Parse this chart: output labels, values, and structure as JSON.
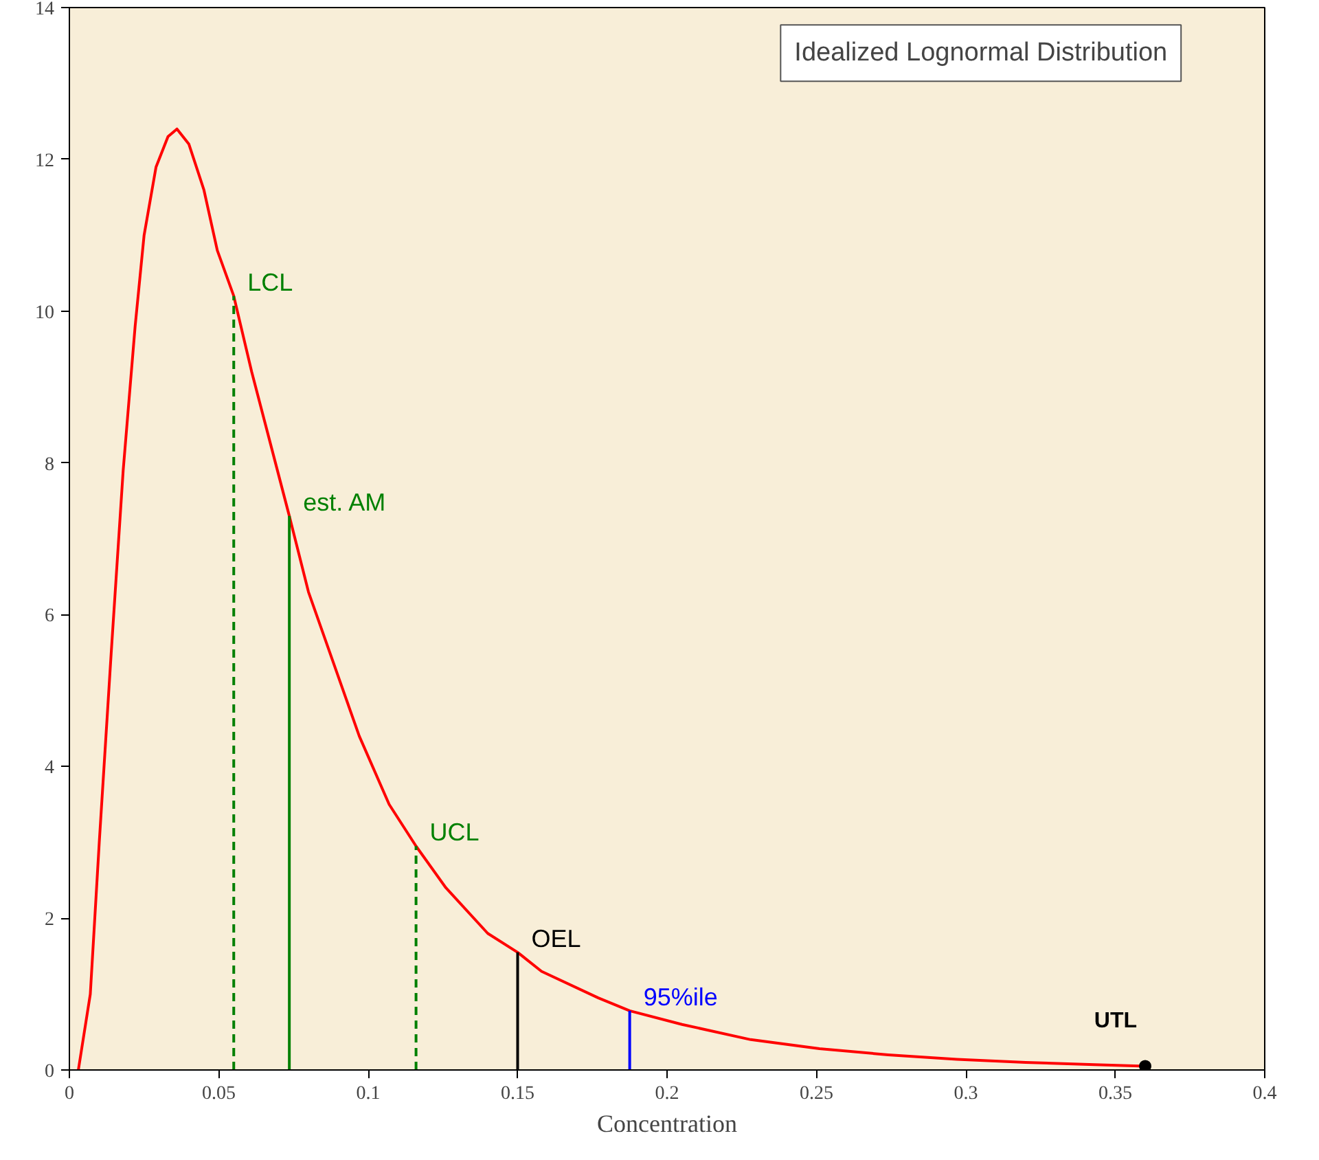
{
  "chart_data": {
    "type": "line",
    "title": "Idealized Lognormal Distribution",
    "xlabel": "Concentration",
    "xlim": [
      0,
      0.4
    ],
    "xticks": [
      0,
      0.05,
      0.1,
      0.15,
      0.2,
      0.25,
      0.3,
      0.35,
      0.4
    ],
    "ylim": [
      0,
      14
    ],
    "yticks": [
      0,
      2,
      4,
      6,
      8,
      10,
      12,
      14
    ],
    "grid": false,
    "marker": "none",
    "series": [
      {
        "color": "#ff0000",
        "line_style": "solid",
        "x": [
          0.003,
          0.007,
          0.01,
          0.014,
          0.018,
          0.022,
          0.025,
          0.029,
          0.033,
          0.036,
          0.04,
          0.045,
          0.0495,
          0.055,
          0.061,
          0.0736,
          0.08,
          0.097,
          0.107,
          0.116,
          0.126,
          0.14,
          0.15,
          0.158,
          0.177,
          0.1875,
          0.205,
          0.228,
          0.251,
          0.274,
          0.297,
          0.32,
          0.343,
          0.36
        ],
        "values": [
          0,
          1.0,
          3.0,
          5.5,
          7.9,
          9.8,
          11.0,
          11.9,
          12.3,
          12.4,
          12.2,
          11.6,
          10.8,
          10.2,
          9.2,
          7.3,
          6.3,
          4.4,
          3.5,
          2.95,
          2.4,
          1.8,
          1.55,
          1.3,
          0.95,
          0.78,
          0.6,
          0.4,
          0.28,
          0.2,
          0.14,
          0.1,
          0.07,
          0.05
        ]
      },
      {
        "name": "LCL",
        "color": "#008000",
        "line_style": "dashed",
        "x": [
          0.055,
          0.055
        ],
        "values": [
          0,
          10.2
        ]
      },
      {
        "name": "est. AM",
        "color": "#008000",
        "line_style": "solid",
        "x": [
          0.0736,
          0.0736
        ],
        "values": [
          0,
          7.3
        ]
      },
      {
        "name": "UCL",
        "color": "#008000",
        "line_style": "dashed",
        "x": [
          0.116,
          0.116
        ],
        "values": [
          0,
          2.95
        ]
      },
      {
        "name": "OEL",
        "color": "#000000",
        "line_style": "solid",
        "x": [
          0.15,
          0.15
        ],
        "values": [
          0,
          1.55
        ]
      },
      {
        "name": "95%ile",
        "color": "#0000ff",
        "line_style": "solid",
        "x": [
          0.1875,
          0.1875
        ],
        "values": [
          0,
          0.78
        ]
      },
      {
        "name": "UTL",
        "type": "scatter",
        "marker": "circle",
        "color": "#000000",
        "x": [
          0.36
        ],
        "values": [
          0.05
        ]
      }
    ]
  }
}
